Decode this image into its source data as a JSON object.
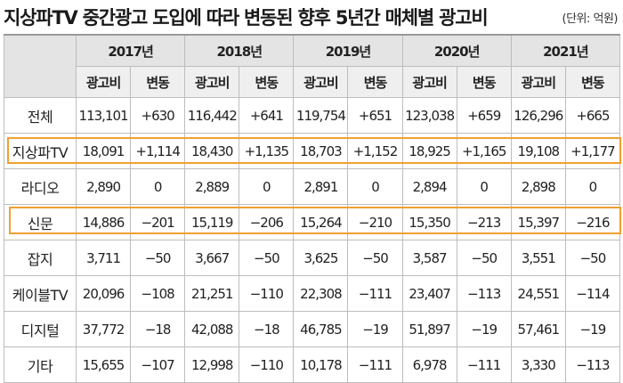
{
  "title": "지상파TV 중간광고 도입에 따라 변동된 향후 5년간 매체별 광고비",
  "unit": "(단위: 억원)",
  "years": [
    "2017년",
    "2018년",
    "2019년",
    "2020년",
    "2021년"
  ],
  "subheaders": {
    "spend": "광고비",
    "change": "변동"
  },
  "highlight_color": "#f0a030",
  "highlighted_rows": [
    "지상파TV",
    "신문"
  ],
  "rows": [
    {
      "label": "전체",
      "cells": [
        "113,101",
        "+630",
        "116,442",
        "+641",
        "119,754",
        "+651",
        "123,038",
        "+659",
        "126,296",
        "+665"
      ]
    },
    {
      "label": "지상파TV",
      "cells": [
        "18,091",
        "+1,114",
        "18,430",
        "+1,135",
        "18,703",
        "+1,152",
        "18,925",
        "+1,165",
        "19,108",
        "+1,177"
      ]
    },
    {
      "label": "라디오",
      "cells": [
        "2,890",
        "0",
        "2,889",
        "0",
        "2,891",
        "0",
        "2,894",
        "0",
        "2,898",
        "0"
      ]
    },
    {
      "label": "신문",
      "cells": [
        "14,886",
        "−201",
        "15,119",
        "−206",
        "15,264",
        "−210",
        "15,350",
        "−213",
        "15,397",
        "−216"
      ]
    },
    {
      "label": "잡지",
      "cells": [
        "3,711",
        "−50",
        "3,667",
        "−50",
        "3,625",
        "−50",
        "3,587",
        "−50",
        "3,551",
        "−50"
      ]
    },
    {
      "label": "케이블TV",
      "cells": [
        "20,096",
        "−108",
        "21,251",
        "−110",
        "22,308",
        "−111",
        "23,407",
        "−113",
        "24,551",
        "−114"
      ]
    },
    {
      "label": "디지털",
      "cells": [
        "37,772",
        "−18",
        "42,088",
        "−18",
        "46,785",
        "−19",
        "51,897",
        "−19",
        "57,461",
        "−19"
      ]
    },
    {
      "label": "기타",
      "cells": [
        "15,655",
        "−107",
        "12,998",
        "−110",
        "10,178",
        "−111",
        "6,978",
        "−111",
        "3,330",
        "−113"
      ]
    }
  ]
}
